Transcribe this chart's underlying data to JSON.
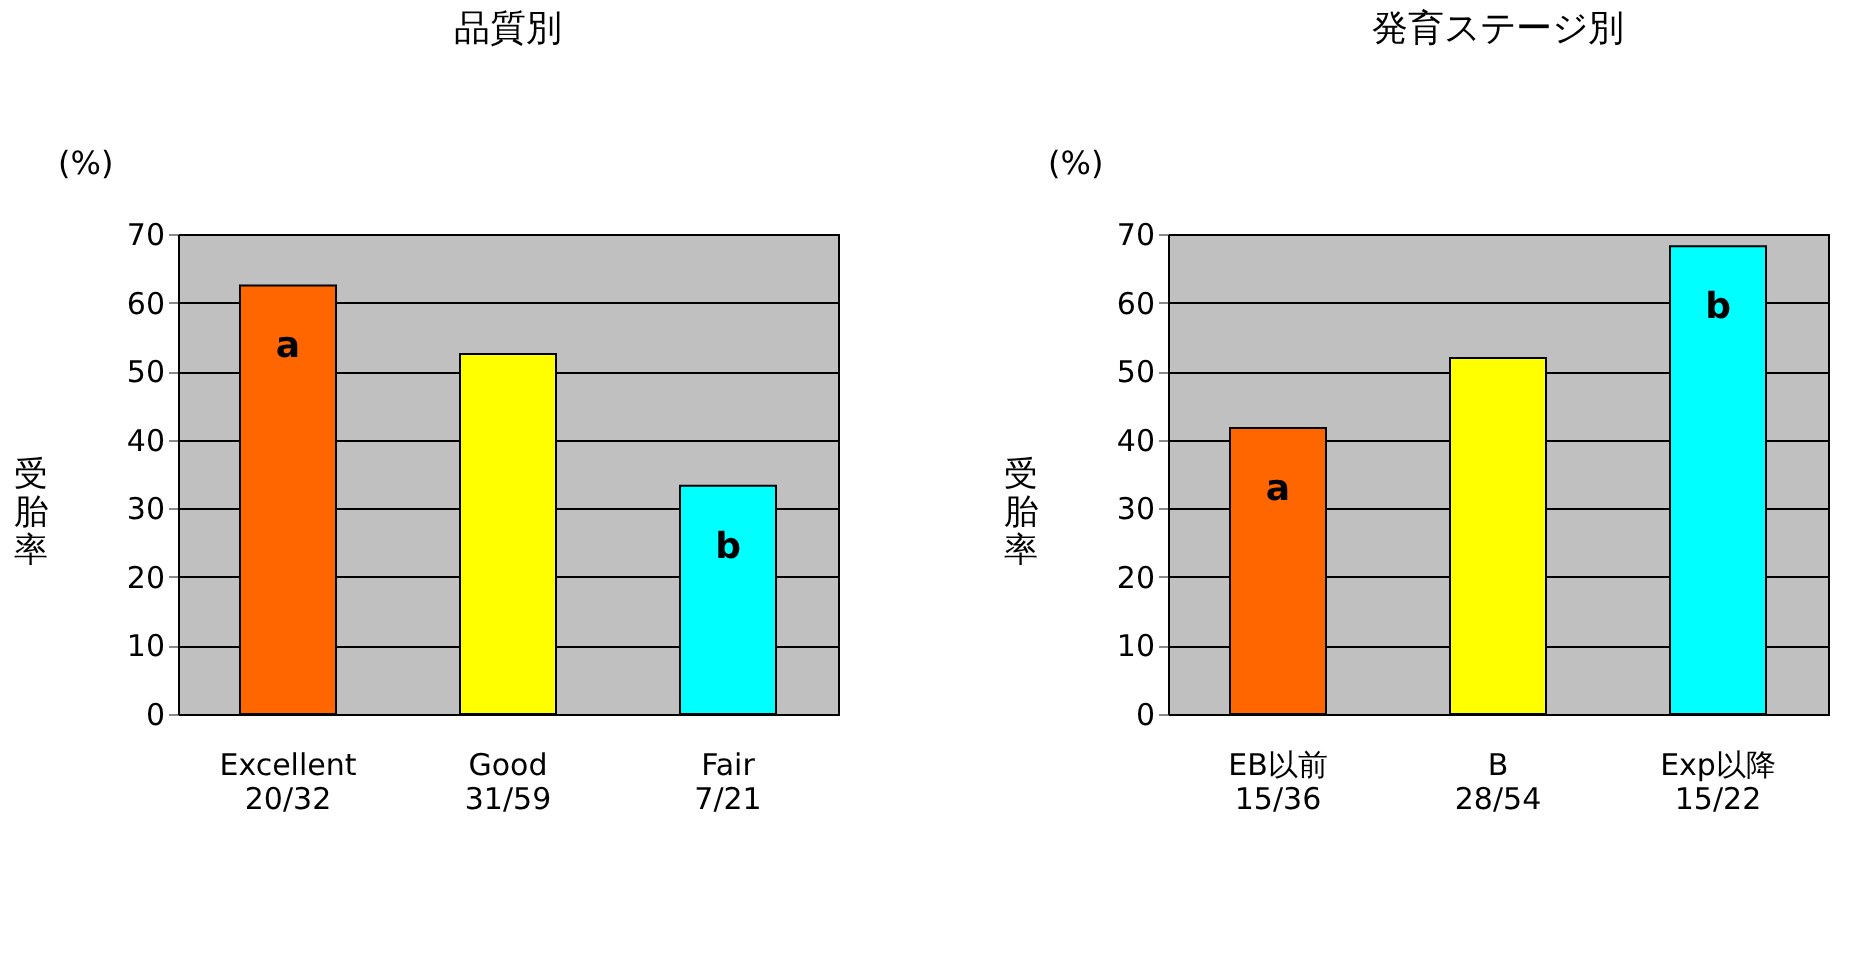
{
  "chart_data": [
    {
      "type": "bar",
      "title": "品質別",
      "ylabel": "受胎率",
      "categories": [
        "Excellent\n20/32",
        "Good\n31/59",
        "Fair\n7/21"
      ],
      "values": [
        62.5,
        52.5,
        33.3
      ],
      "value_labels": [
        "a",
        null,
        "b"
      ],
      "colors": [
        "#ff6600",
        "#ffff00",
        "#00ffff"
      ],
      "ylim": [
        0,
        70
      ],
      "yticks": [
        0,
        10,
        20,
        30,
        40,
        50,
        60,
        70
      ],
      "grid": "y",
      "annotations": [
        "(%)"
      ]
    },
    {
      "type": "bar",
      "title": "発育ステージ別",
      "ylabel": "受胎率",
      "categories": [
        "EB以前\n15/36",
        "B\n28/54",
        "Exp以降\n15/22"
      ],
      "values": [
        41.7,
        51.9,
        68.2
      ],
      "value_labels": [
        "a",
        null,
        "b"
      ],
      "colors": [
        "#ff6600",
        "#ffff00",
        "#00ffff"
      ],
      "ylim": [
        0,
        70
      ],
      "yticks": [
        0,
        10,
        20,
        30,
        40,
        50,
        60,
        70
      ],
      "grid": "y",
      "annotations": [
        "(%)"
      ]
    }
  ]
}
